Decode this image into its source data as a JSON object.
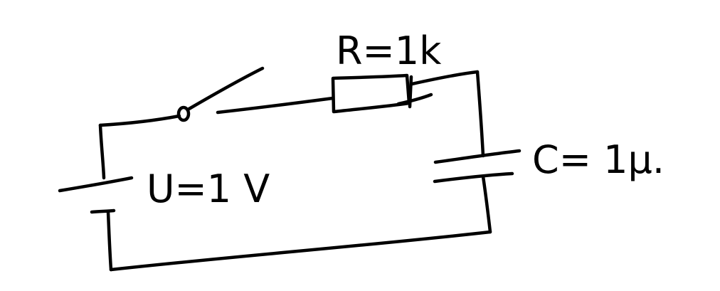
{
  "labels": {
    "resistor": "R=1k",
    "voltage": "U=1 V",
    "capacitor": "C= 1μ."
  },
  "colors": {
    "ink": "#000000",
    "paper": "#ffffff"
  }
}
